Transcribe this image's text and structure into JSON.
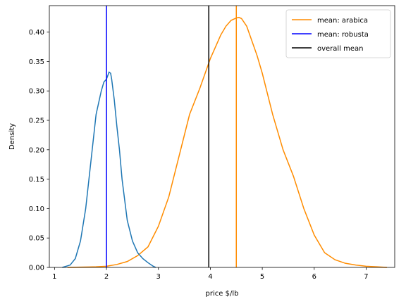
{
  "chart_data": {
    "type": "line",
    "title": "",
    "xlabel": "price $/lb",
    "ylabel": "Density",
    "xlim": [
      0.9,
      7.55
    ],
    "ylim": [
      0,
      0.445
    ],
    "xticks": [
      1,
      2,
      3,
      4,
      5,
      6,
      7
    ],
    "yticks": [
      0.0,
      0.05,
      0.1,
      0.15,
      0.2,
      0.25,
      0.3,
      0.35,
      0.4
    ],
    "ytick_labels": [
      "0.00",
      "0.05",
      "0.10",
      "0.15",
      "0.20",
      "0.25",
      "0.30",
      "0.35",
      "0.40"
    ],
    "grid": false,
    "legend_position": "top-right",
    "series": [
      {
        "color": "#ff8c00",
        "kind": "density",
        "x": [
          1.25,
          1.5,
          1.8,
          2.0,
          2.2,
          2.4,
          2.6,
          2.8,
          3.0,
          3.2,
          3.4,
          3.6,
          3.8,
          3.9,
          4.0,
          4.1,
          4.2,
          4.3,
          4.4,
          4.5,
          4.55,
          4.6,
          4.7,
          4.8,
          4.9,
          5.0,
          5.2,
          5.4,
          5.6,
          5.8,
          6.0,
          6.2,
          6.4,
          6.6,
          6.8,
          7.0,
          7.2,
          7.4
        ],
        "values": [
          0.0,
          0.0005,
          0.001,
          0.002,
          0.005,
          0.01,
          0.02,
          0.035,
          0.07,
          0.12,
          0.19,
          0.26,
          0.305,
          0.33,
          0.355,
          0.375,
          0.395,
          0.41,
          0.42,
          0.424,
          0.425,
          0.423,
          0.41,
          0.385,
          0.36,
          0.33,
          0.26,
          0.2,
          0.155,
          0.1,
          0.055,
          0.025,
          0.013,
          0.007,
          0.004,
          0.002,
          0.001,
          0.0
        ]
      },
      {
        "color": "#1f77b4",
        "kind": "density",
        "x": [
          1.15,
          1.3,
          1.4,
          1.5,
          1.6,
          1.7,
          1.8,
          1.85,
          1.9,
          1.95,
          2.0,
          2.05,
          2.08,
          2.1,
          2.15,
          2.2,
          2.25,
          2.3,
          2.4,
          2.5,
          2.6,
          2.7,
          2.8,
          2.9,
          2.95
        ],
        "values": [
          0.0,
          0.004,
          0.015,
          0.045,
          0.1,
          0.18,
          0.26,
          0.28,
          0.3,
          0.315,
          0.32,
          0.332,
          0.33,
          0.32,
          0.285,
          0.24,
          0.2,
          0.15,
          0.08,
          0.045,
          0.025,
          0.015,
          0.008,
          0.002,
          0.0
        ]
      }
    ],
    "vertical_lines": [
      {
        "name": "mean: arabica",
        "x": 4.5,
        "color": "#ff8c00"
      },
      {
        "name": "mean: robusta",
        "x": 2.0,
        "color": "#0000ff"
      },
      {
        "name": "overall mean",
        "x": 3.97,
        "color": "#000000"
      }
    ]
  }
}
